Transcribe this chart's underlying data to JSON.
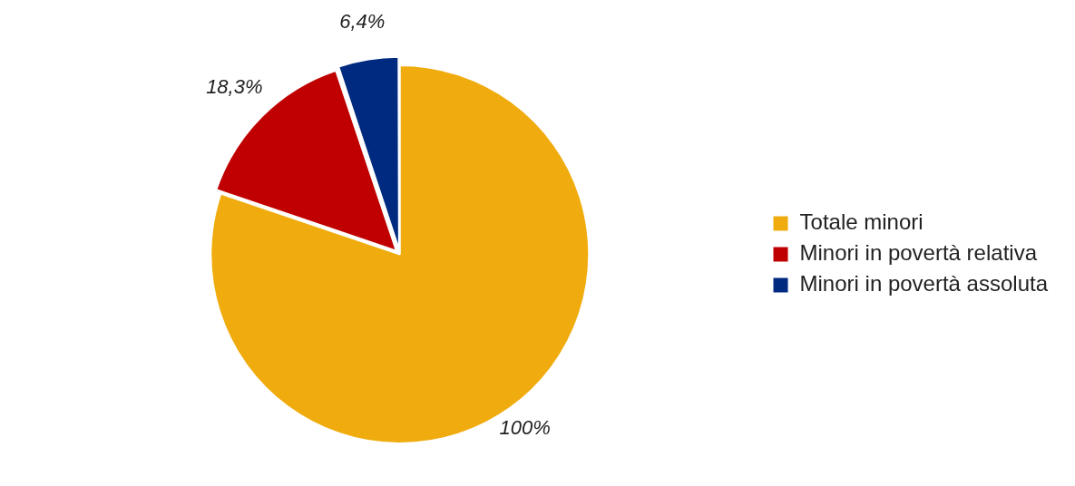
{
  "chart_data": {
    "type": "pie",
    "categories": [
      "Totale minori",
      "Minori in povertà relativa",
      "Minori in povertà assoluta"
    ],
    "values": [
      100,
      18.3,
      6.4
    ],
    "colors": [
      "#f0ac0e",
      "#c00000",
      "#002a80"
    ],
    "value_labels": [
      "100%",
      "18,3%",
      "6,4%"
    ],
    "legend": "right"
  }
}
